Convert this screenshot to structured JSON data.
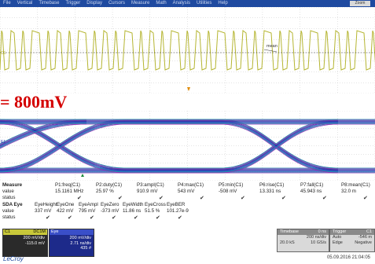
{
  "menu": [
    "File",
    "Vertical",
    "Timebase",
    "Trigger",
    "Display",
    "Cursors",
    "Measure",
    "Math",
    "Analysis",
    "Utilities",
    "Help"
  ],
  "zoom_button": "Zoom",
  "headline": "= 800mV",
  "channel_markers": {
    "c1": "C1",
    "eye": "E1"
  },
  "mean_label": "mean",
  "measure": {
    "row1_label": "Measure",
    "row1_headers": [
      "P1:freq(C1)",
      "P2:duty(C1)",
      "P3:ampl(C1)",
      "P4:max(C1)",
      "P5:min(C1)",
      "P6:rise(C1)",
      "P7:fall(C1)",
      "P8:mean(C1)"
    ],
    "value_label": "value",
    "row1_values": [
      "15.1161 MHz",
      "25.97 %",
      "910.9 mV",
      "543 mV",
      "-508 mV",
      "13.331 ns",
      "45.943 ns",
      "32.0 m"
    ],
    "status_label": "status",
    "row2_label": "SDA Eye",
    "row2_headers": [
      "EyeHeight",
      "EyeOne",
      "EyeAmpl",
      "EyeZero",
      "EyeWidth",
      "EyeCross",
      "EyeBER"
    ],
    "row2_values": [
      "337 mV",
      "422 mV",
      "795 mV",
      "-373 mV",
      "11.86 ns",
      "51.5 %",
      "101.27e-9"
    ]
  },
  "channels": [
    {
      "name": "C1",
      "tag": "DC1M",
      "scale": "200 mV/div",
      "offset": "-115.0 mV"
    },
    {
      "name": "Eye",
      "tag": "",
      "scale": "200 mV/div",
      "timediv": "2.71 ns/div",
      "count": "435 #"
    }
  ],
  "timebase": {
    "title": "Timebase",
    "value": "0 ns",
    "div": "200 ns/div",
    "sr": "20.0 kS",
    "rate": "10 GS/s"
  },
  "trigger": {
    "title": "Trigger",
    "ch": "C1",
    "mode": "Auto",
    "level": "-546 m",
    "type": "Edge",
    "slope": "Negative"
  },
  "logo": "LeCroy",
  "datetime": "05.09.2016 21:04:05",
  "colors": {
    "menubar": "#1f4aa0",
    "c1": "#b5b531",
    "eye": "#1a2fb0",
    "headline": "#d40000"
  }
}
